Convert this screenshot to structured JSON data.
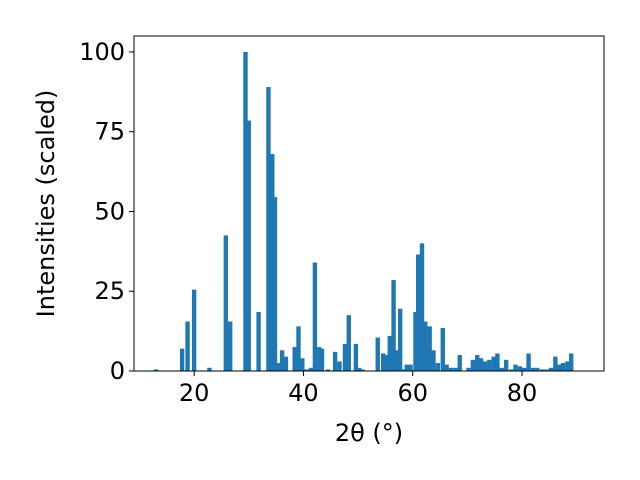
{
  "chart_data": {
    "type": "bar",
    "xlabel": "2θ (°)",
    "ylabel": "Intensities (scaled)",
    "xlim": [
      9,
      95
    ],
    "ylim": [
      0,
      105
    ],
    "xticks": [
      20,
      40,
      60,
      80
    ],
    "yticks": [
      0,
      25,
      50,
      75,
      100
    ],
    "bar_width": 0.8,
    "color": "#1f77b4",
    "grid": false,
    "x": [
      13,
      17.8,
      18.8,
      20.0,
      22.8,
      25.8,
      26.6,
      29.4,
      30.0,
      31.8,
      33.6,
      34.3,
      34.8,
      35.5,
      36.1,
      36.8,
      38.4,
      39.1,
      39.8,
      40.6,
      41.4,
      42.1,
      42.9,
      43.4,
      44.5,
      45.8,
      46.6,
      47.6,
      48.3,
      49.6,
      50.2,
      50.8,
      53.6,
      54.6,
      55.2,
      55.8,
      56.5,
      57.1,
      57.7,
      58.3,
      58.9,
      59.6,
      60.5,
      61.0,
      61.7,
      62.3,
      63.1,
      63.8,
      64.6,
      65.5,
      66.2,
      67.0,
      67.8,
      68.6,
      70.2,
      71.0,
      71.8,
      72.5,
      73.2,
      74.0,
      74.8,
      75.5,
      76.3,
      77.1,
      78.0,
      78.8,
      79.6,
      80.4,
      81.2,
      82.0,
      82.8,
      83.7,
      84.5,
      85.3,
      86.1,
      86.8,
      87.5,
      88.3,
      89.0
    ],
    "values": [
      0.5,
      7,
      15.5,
      25.5,
      1,
      42.5,
      15.5,
      100,
      78.5,
      18.5,
      89,
      68,
      54.5,
      2.5,
      6.5,
      4.5,
      7.5,
      14,
      4,
      0.5,
      1,
      34,
      7.5,
      7,
      0.5,
      6,
      3,
      8.5,
      17.5,
      8.5,
      1,
      0.5,
      10.5,
      5.5,
      5,
      11,
      28.5,
      6.5,
      19.5,
      0.5,
      2,
      2,
      18.5,
      36.5,
      40,
      15.5,
      14,
      6.5,
      2.5,
      13.5,
      2,
      1,
      1,
      5,
      1,
      3.5,
      5,
      4,
      3,
      3.5,
      4.5,
      5.5,
      1,
      3.5,
      0.5,
      2,
      1.5,
      1,
      5.5,
      1,
      1,
      0.5,
      0.5,
      1,
      4.5,
      2,
      2.5,
      3,
      5.5
    ]
  }
}
